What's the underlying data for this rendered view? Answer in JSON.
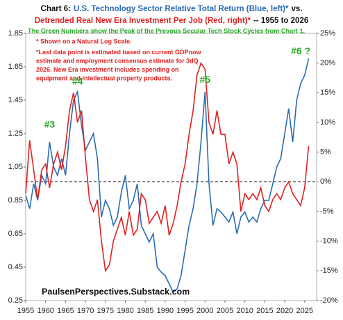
{
  "chart_data": {
    "type": "line",
    "title_line1": [
      {
        "text": "Chart 6:",
        "color": "#111111"
      },
      {
        "text": "U.S. Technology Sector Relative Total Return (Blue, left)*",
        "color": "#2a6bb5"
      },
      {
        "text": "vs.",
        "color": "#111111"
      }
    ],
    "title_line2": [
      {
        "text": "Detrended Real New Era Investment Per Job (Red, right)*",
        "color": "#e02020"
      },
      {
        "text": "-- 1955 to 2026",
        "color": "#111111"
      }
    ],
    "subtitle": "The Green Numbers show the Peak of the Prevous Secular Tech Stock Cycles from Chart 1.",
    "subtitle_color": "#22aa22",
    "notes": [
      "* Shown on a Natural Log Scale.",
      "*Last data point is estimated based on current GDPnow",
      "estimate and employment consensus estimate for 3dQ",
      "2026. New Era investment includes spending on",
      "equipment and intellectual property products."
    ],
    "notes_color": "#e02020",
    "source": "PaulsenPerspectives.Substack.com",
    "peaks": [
      {
        "label": "#3",
        "x": 1961,
        "y": 1.3
      },
      {
        "label": "#4",
        "x": 1968,
        "y": 1.56
      },
      {
        "label": "#5",
        "x": 2000,
        "y": 1.57
      },
      {
        "label": "#6 ?",
        "x": 2024,
        "y": 1.74
      }
    ],
    "peaks_color": "#22aa22",
    "x": [
      1955,
      1956,
      1957,
      1958,
      1959,
      1960,
      1961,
      1962,
      1963,
      1964,
      1965,
      1966,
      1967,
      1968,
      1969,
      1970,
      1971,
      1972,
      1973,
      1974,
      1975,
      1976,
      1977,
      1978,
      1979,
      1980,
      1981,
      1982,
      1983,
      1984,
      1985,
      1986,
      1987,
      1988,
      1989,
      1990,
      1991,
      1992,
      1993,
      1994,
      1995,
      1996,
      1997,
      1998,
      1999,
      2000,
      2001,
      2002,
      2003,
      2004,
      2005,
      2006,
      2007,
      2008,
      2009,
      2010,
      2011,
      2012,
      2013,
      2014,
      2015,
      2016,
      2017,
      2018,
      2019,
      2020,
      2021,
      2022,
      2023,
      2024,
      2025,
      2026
    ],
    "series": [
      {
        "name": "U.S. Technology Sector Relative Total Return",
        "color": "#2a6bb5",
        "axis": "y",
        "values": [
          0.88,
          0.8,
          0.95,
          0.85,
          1.0,
          0.95,
          1.2,
          1.05,
          1.0,
          1.1,
          1.0,
          1.25,
          1.45,
          1.5,
          1.3,
          1.15,
          1.2,
          1.25,
          1.1,
          0.75,
          0.85,
          0.8,
          0.7,
          0.75,
          0.9,
          1.0,
          0.8,
          0.85,
          0.95,
          0.7,
          0.65,
          0.6,
          0.65,
          0.45,
          0.42,
          0.4,
          0.35,
          0.3,
          0.32,
          0.4,
          0.55,
          0.7,
          0.8,
          0.95,
          1.2,
          1.5,
          0.95,
          0.7,
          0.8,
          0.78,
          0.75,
          0.72,
          0.78,
          0.65,
          0.75,
          0.78,
          0.72,
          0.75,
          0.72,
          0.8,
          0.85,
          0.85,
          0.95,
          1.05,
          1.1,
          1.25,
          1.4,
          1.2,
          1.45,
          1.55,
          1.6,
          1.7
        ]
      },
      {
        "name": "Detrended Real New Era Investment Per Job",
        "color": "#e02020",
        "axis": "y2",
        "values": [
          -2,
          7,
          2,
          -3,
          2,
          3,
          -1,
          3,
          5,
          2,
          6,
          12,
          15,
          10,
          12,
          4,
          -3,
          -5,
          -3,
          -10,
          -15,
          -14,
          -10,
          -8,
          -6,
          -9,
          -5,
          -9,
          -8,
          -2,
          -3,
          -7,
          -6,
          -5,
          -7,
          -4,
          -9,
          -7,
          -4,
          0,
          3,
          8,
          12,
          18,
          20,
          19,
          10,
          8,
          12,
          8,
          8,
          3,
          5,
          3,
          -5,
          -2,
          -3,
          -2,
          -3,
          -1,
          -4,
          -5,
          -3,
          -2,
          -3,
          -1,
          0,
          -2,
          -3,
          -4,
          -1,
          6
        ]
      }
    ],
    "xlim": [
      1955,
      2028
    ],
    "xticks": [
      1955,
      1960,
      1965,
      1970,
      1975,
      1980,
      1985,
      1990,
      1995,
      2000,
      2005,
      2010,
      2015,
      2020,
      2025
    ],
    "ylim": [
      0.25,
      1.85
    ],
    "yticks": [
      0.25,
      0.45,
      0.65,
      0.85,
      1.05,
      1.25,
      1.45,
      1.65,
      1.85
    ],
    "y2lim": [
      -20,
      25
    ],
    "y2ticks": [
      {
        "value": -20,
        "label": "-20%"
      },
      {
        "value": -15,
        "label": "-15%"
      },
      {
        "value": -10,
        "label": "-10%"
      },
      {
        "value": -5,
        "label": "-5%"
      },
      {
        "value": 0,
        "label": "0%"
      },
      {
        "value": 5,
        "label": "5%"
      },
      {
        "value": 10,
        "label": "10%"
      },
      {
        "value": 15,
        "label": "15%"
      },
      {
        "value": 20,
        "label": "20%"
      },
      {
        "value": 25,
        "label": "25%"
      }
    ],
    "zero_line": true
  }
}
